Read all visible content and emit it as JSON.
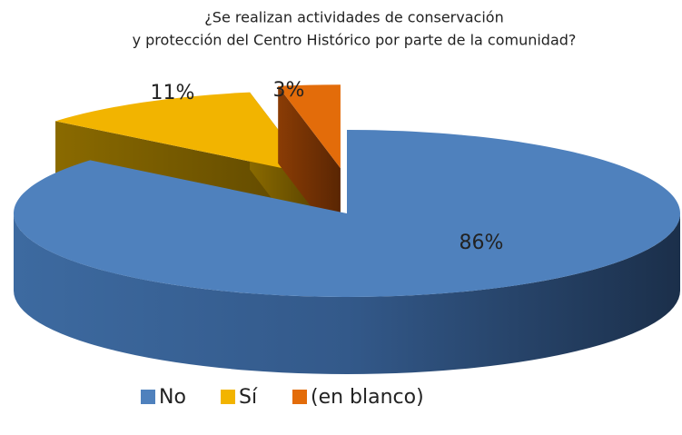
{
  "chart_data": {
    "type": "pie3d",
    "title": [
      "¿Se realizan actividades de conservación",
      "y protección del Centro Histórico por parte de la comunidad?"
    ],
    "categories": [
      "No",
      "Sí",
      "(en blanco)"
    ],
    "values": [
      86,
      11,
      3
    ],
    "value_labels": [
      "86%",
      "11%",
      "3%"
    ],
    "colors": [
      "#4f81bd",
      "#f2b400",
      "#e36c0a"
    ],
    "exploded": [
      false,
      true,
      true
    ],
    "legend": "bottom"
  }
}
